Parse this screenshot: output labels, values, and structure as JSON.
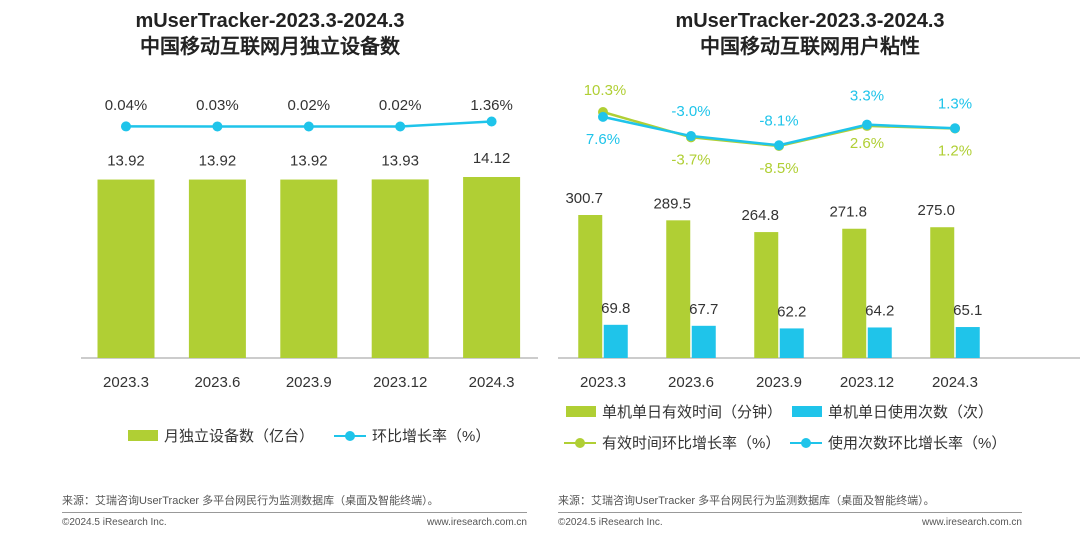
{
  "colors": {
    "green": "#b0cf34",
    "cyan": "#1fc4ea",
    "text": "#333333",
    "axis": "#9a9a9a"
  },
  "left": {
    "title_line1": "mUserTracker-2023.3-2024.3",
    "title_line2": "中国移动互联网月独立设备数",
    "legend_bar": "月独立设备数（亿台）",
    "legend_line": "环比增长率（%）",
    "source": "来源：艾瑞咨询UserTracker 多平台网民行为监测数据库（桌面及智能终端）。",
    "copyright": "©2024.5 iResearch Inc.",
    "site": "www.iresearch.com.cn"
  },
  "right": {
    "title_line1": "mUserTracker-2023.3-2024.3",
    "title_line2": "中国移动互联网用户粘性",
    "legend": [
      "单机单日有效时间（分钟）",
      "单机单日使用次数（次）",
      "有效时间环比增长率（%）",
      "使用次数环比增长率（%）"
    ],
    "source": "来源：艾瑞咨询UserTracker 多平台网民行为监测数据库（桌面及智能终端）。",
    "copyright": "©2024.5 iResearch Inc.",
    "site": "www.iresearch.com.cn"
  },
  "chart_data": [
    {
      "type": "bar",
      "title": "mUserTracker-2023.3-2024.3 中国移动互联网月独立设备数",
      "categories": [
        "2023.3",
        "2023.6",
        "2023.9",
        "2023.12",
        "2024.3"
      ],
      "series": [
        {
          "name": "月独立设备数（亿台）",
          "type": "bar",
          "values": [
            13.92,
            13.92,
            13.92,
            13.93,
            14.12
          ],
          "labels": [
            "13.92",
            "13.92",
            "13.92",
            "13.93",
            "14.12"
          ]
        },
        {
          "name": "环比增长率（%）",
          "type": "line",
          "values": [
            0.04,
            0.03,
            0.02,
            0.02,
            1.36
          ],
          "labels": [
            "0.04%",
            "0.03%",
            "0.02%",
            "0.02%",
            "1.36%"
          ]
        }
      ]
    },
    {
      "type": "bar",
      "title": "mUserTracker-2023.3-2024.3 中国移动互联网用户粘性",
      "categories": [
        "2023.3",
        "2023.6",
        "2023.9",
        "2023.12",
        "2024.3"
      ],
      "series": [
        {
          "name": "单机单日有效时间（分钟）",
          "type": "bar",
          "values": [
            300.7,
            289.5,
            264.8,
            271.8,
            275.0
          ],
          "labels": [
            "300.7",
            "289.5",
            "264.8",
            "271.8",
            "275.0"
          ]
        },
        {
          "name": "单机单日使用次数（次）",
          "type": "bar",
          "values": [
            69.8,
            67.7,
            62.2,
            64.2,
            65.1
          ],
          "labels": [
            "69.8",
            "67.7",
            "62.2",
            "64.2",
            "65.1"
          ]
        },
        {
          "name": "有效时间环比增长率（%）",
          "type": "line",
          "values": [
            10.3,
            -3.7,
            -8.5,
            2.6,
            1.2
          ],
          "labels": [
            "10.3%",
            "-3.7%",
            "-8.5%",
            "2.6%",
            "1.2%"
          ]
        },
        {
          "name": "使用次数环比增长率（%）",
          "type": "line",
          "values": [
            7.6,
            -3.0,
            -8.1,
            3.3,
            1.3
          ],
          "labels": [
            "7.6%",
            "-3.0%",
            "-8.1%",
            "3.3%",
            "1.3%"
          ]
        }
      ]
    }
  ]
}
